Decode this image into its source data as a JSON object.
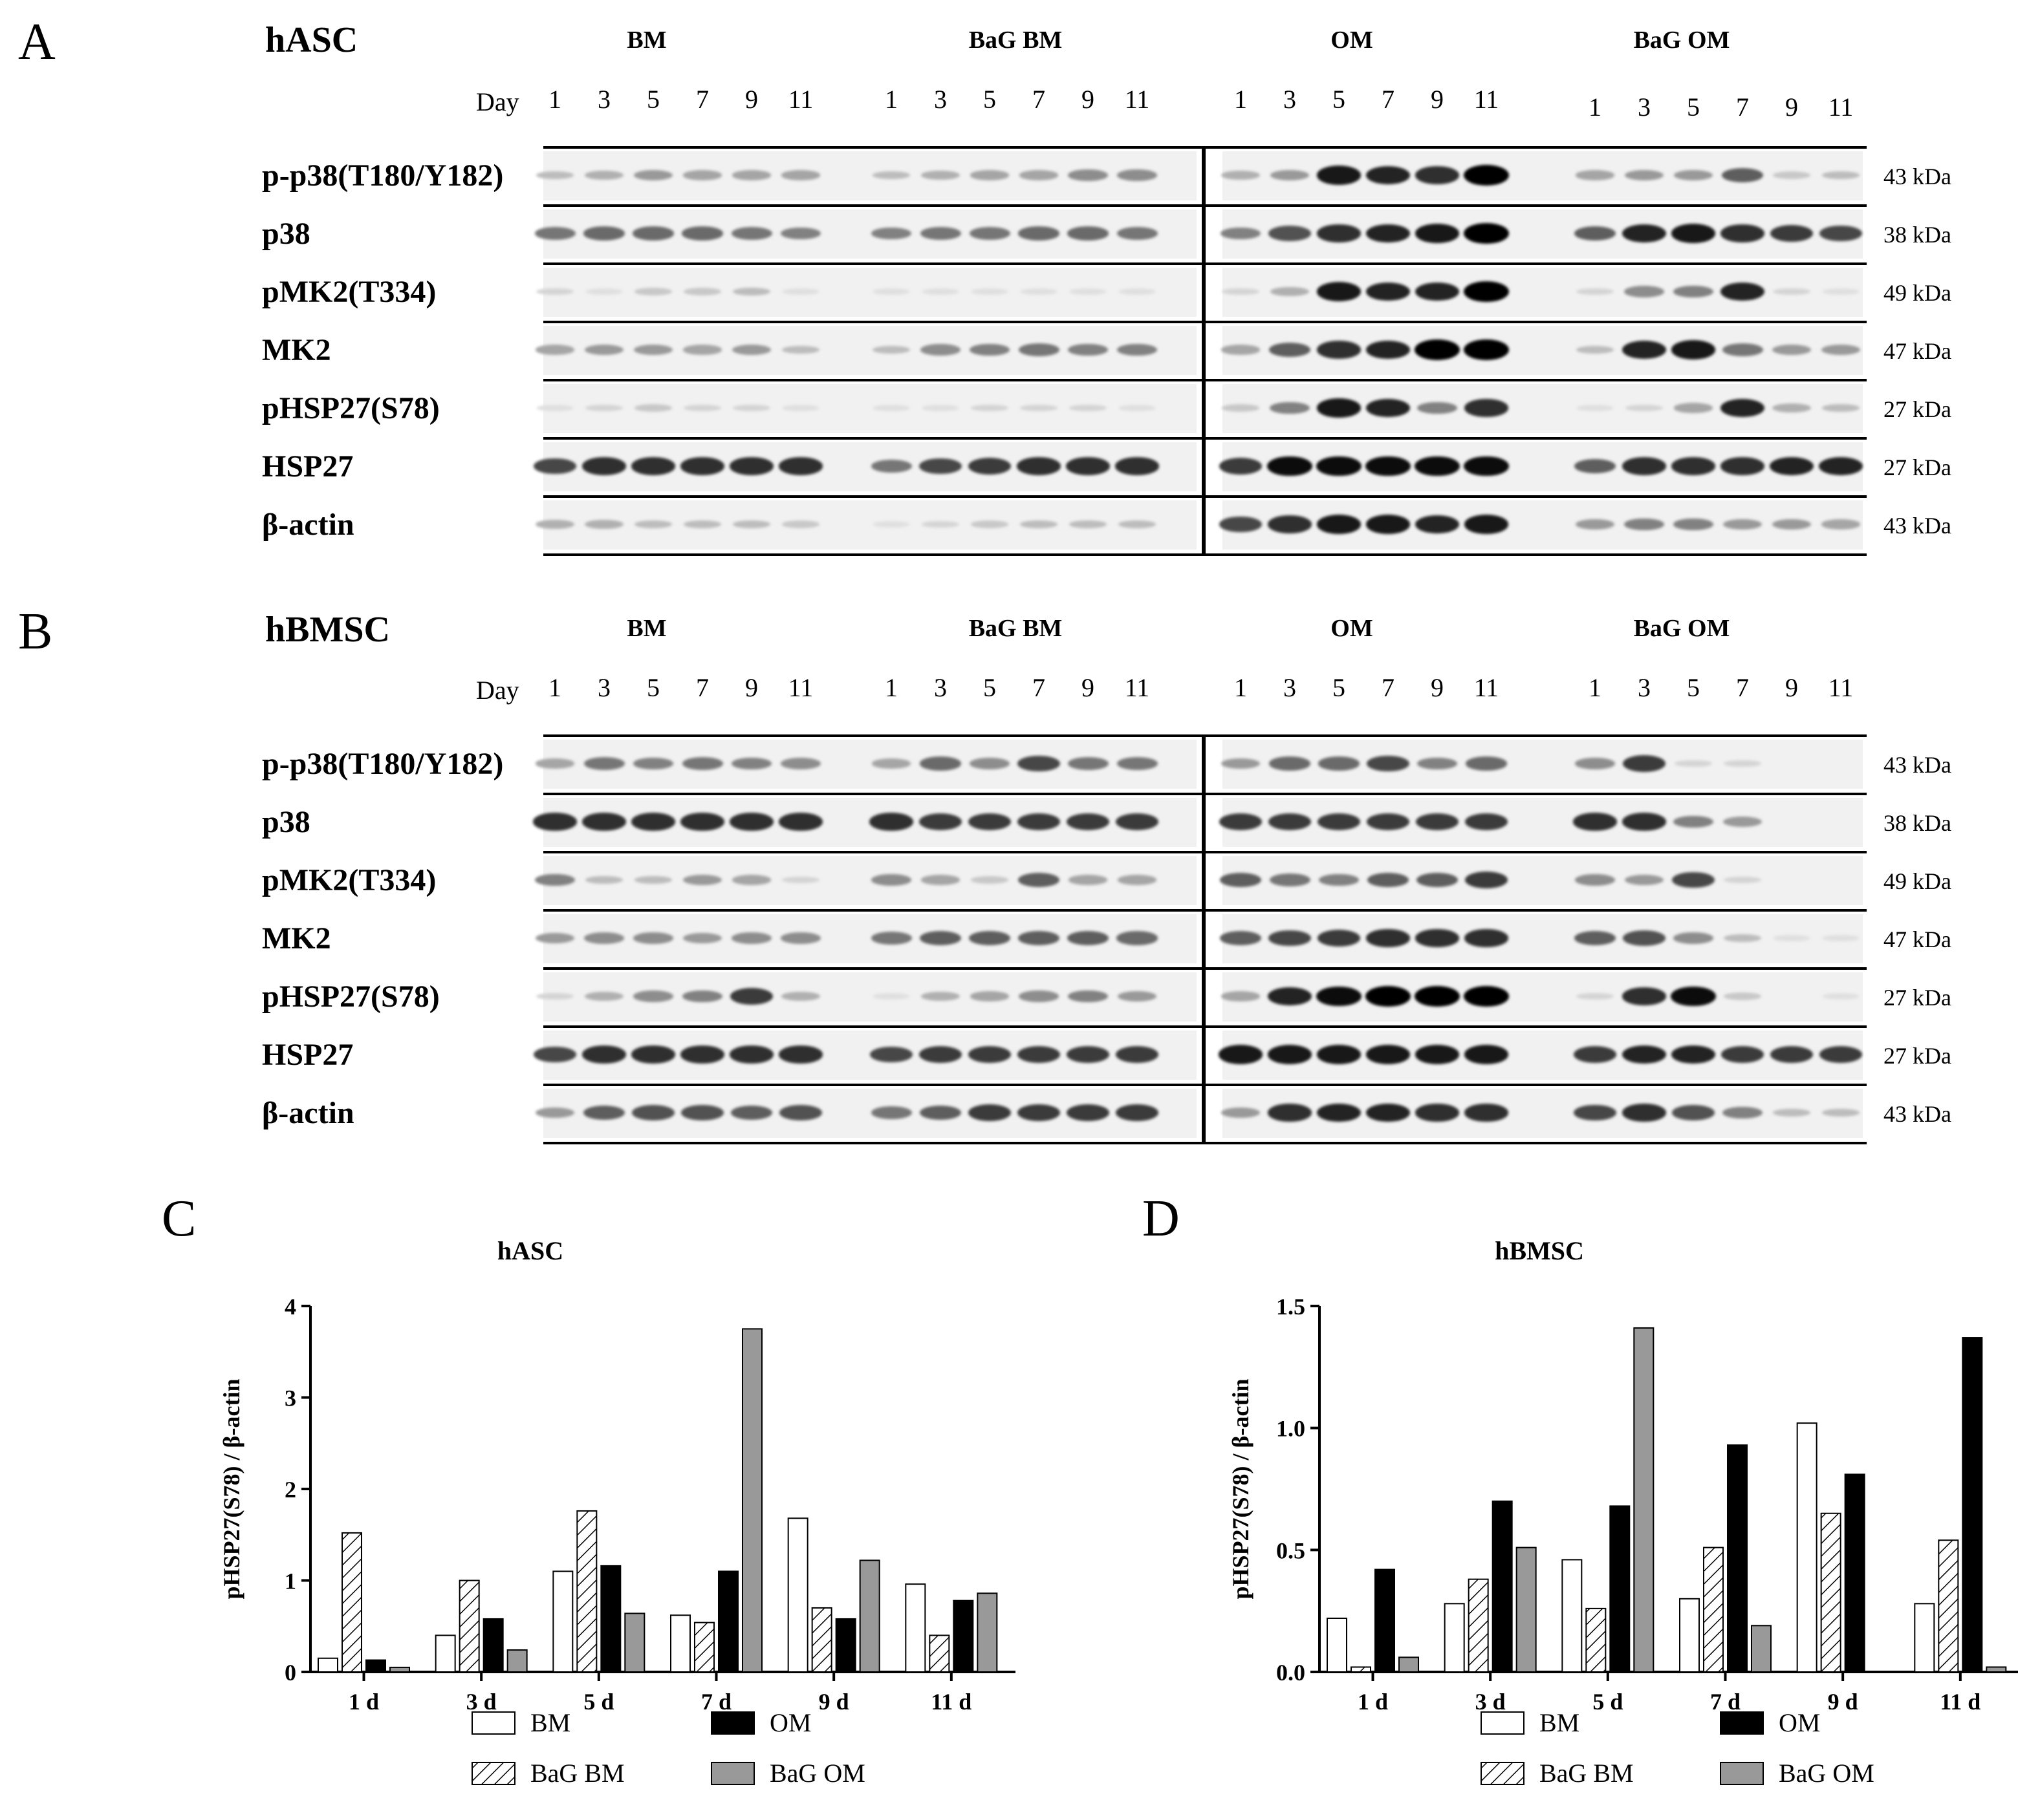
{
  "panels": {
    "A": {
      "letter": "A",
      "cell": "hASC"
    },
    "B": {
      "letter": "B",
      "cell": "hBMSC"
    },
    "C": {
      "letter": "C"
    },
    "D": {
      "letter": "D"
    }
  },
  "blot": {
    "groups": [
      "BM",
      "BaG BM",
      "OM",
      "BaG OM"
    ],
    "day_label": "Day",
    "days": [
      "1",
      "3",
      "5",
      "7",
      "9",
      "11"
    ],
    "rows": [
      {
        "label": "p-p38(T180/Y182)",
        "kda": "43 kDa"
      },
      {
        "label": "p38",
        "kda": "38 kDa"
      },
      {
        "label": "pMK2(T334)",
        "kda": "49 kDa"
      },
      {
        "label": "MK2",
        "kda": "47 kDa"
      },
      {
        "label": "pHSP27(S78)",
        "kda": "27 kDa"
      },
      {
        "label": "HSP27",
        "kda": "27 kDa"
      },
      {
        "label": "β-actin",
        "kda": "43 kDa"
      }
    ],
    "intensity_A": [
      [
        [
          0.2,
          0.25,
          0.35,
          0.3,
          0.3,
          0.3
        ],
        [
          0.2,
          0.25,
          0.3,
          0.3,
          0.4,
          0.4
        ],
        [
          0.25,
          0.35,
          0.9,
          0.85,
          0.8,
          1.0
        ],
        [
          0.3,
          0.35,
          0.35,
          0.6,
          0.15,
          0.2
        ]
      ],
      [
        [
          0.5,
          0.55,
          0.55,
          0.55,
          0.5,
          0.45
        ],
        [
          0.45,
          0.5,
          0.5,
          0.55,
          0.55,
          0.5
        ],
        [
          0.45,
          0.65,
          0.8,
          0.85,
          0.9,
          1.0
        ],
        [
          0.6,
          0.85,
          0.9,
          0.8,
          0.75,
          0.7
        ]
      ],
      [
        [
          0.1,
          0.05,
          0.15,
          0.15,
          0.2,
          0.05
        ],
        [
          0.05,
          0.05,
          0.05,
          0.05,
          0.05,
          0.05
        ],
        [
          0.1,
          0.25,
          0.9,
          0.85,
          0.85,
          1.0
        ],
        [
          0.1,
          0.4,
          0.45,
          0.85,
          0.1,
          0.05
        ]
      ],
      [
        [
          0.3,
          0.35,
          0.35,
          0.3,
          0.35,
          0.2
        ],
        [
          0.2,
          0.4,
          0.45,
          0.5,
          0.45,
          0.45
        ],
        [
          0.3,
          0.6,
          0.8,
          0.85,
          1.0,
          1.0
        ],
        [
          0.2,
          0.85,
          0.9,
          0.5,
          0.35,
          0.35
        ]
      ],
      [
        [
          0.05,
          0.1,
          0.15,
          0.1,
          0.1,
          0.05
        ],
        [
          0.05,
          0.05,
          0.1,
          0.1,
          0.1,
          0.05
        ],
        [
          0.15,
          0.45,
          0.9,
          0.85,
          0.45,
          0.8
        ],
        [
          0.05,
          0.1,
          0.3,
          0.85,
          0.25,
          0.2
        ]
      ],
      [
        [
          0.7,
          0.8,
          0.8,
          0.8,
          0.8,
          0.8
        ],
        [
          0.5,
          0.7,
          0.75,
          0.8,
          0.8,
          0.8
        ],
        [
          0.75,
          0.95,
          0.95,
          0.95,
          0.95,
          0.95
        ],
        [
          0.6,
          0.8,
          0.8,
          0.8,
          0.85,
          0.85
        ]
      ],
      [
        [
          0.25,
          0.25,
          0.2,
          0.2,
          0.2,
          0.15
        ],
        [
          0.05,
          0.1,
          0.15,
          0.2,
          0.2,
          0.2
        ],
        [
          0.7,
          0.8,
          0.9,
          0.9,
          0.85,
          0.9
        ],
        [
          0.35,
          0.45,
          0.45,
          0.35,
          0.35,
          0.3
        ]
      ]
    ],
    "intensity_B": [
      [
        [
          0.3,
          0.5,
          0.45,
          0.5,
          0.45,
          0.4
        ],
        [
          0.3,
          0.55,
          0.4,
          0.7,
          0.5,
          0.5
        ],
        [
          0.35,
          0.55,
          0.55,
          0.7,
          0.45,
          0.55
        ],
        [
          0.4,
          0.75,
          0.1,
          0.1,
          0.0,
          0.0
        ]
      ],
      [
        [
          0.8,
          0.8,
          0.8,
          0.8,
          0.8,
          0.8
        ],
        [
          0.8,
          0.75,
          0.75,
          0.75,
          0.75,
          0.75
        ],
        [
          0.75,
          0.75,
          0.75,
          0.75,
          0.75,
          0.75
        ],
        [
          0.8,
          0.8,
          0.45,
          0.35,
          0.0,
          0.0
        ]
      ],
      [
        [
          0.45,
          0.2,
          0.2,
          0.35,
          0.3,
          0.1
        ],
        [
          0.4,
          0.3,
          0.15,
          0.6,
          0.3,
          0.3
        ],
        [
          0.6,
          0.5,
          0.45,
          0.6,
          0.6,
          0.75
        ],
        [
          0.4,
          0.35,
          0.7,
          0.1,
          0.0,
          0.0
        ]
      ],
      [
        [
          0.35,
          0.4,
          0.4,
          0.35,
          0.4,
          0.4
        ],
        [
          0.5,
          0.6,
          0.6,
          0.6,
          0.6,
          0.55
        ],
        [
          0.6,
          0.7,
          0.75,
          0.8,
          0.8,
          0.8
        ],
        [
          0.6,
          0.65,
          0.4,
          0.2,
          0.05,
          0.05
        ]
      ],
      [
        [
          0.1,
          0.25,
          0.4,
          0.45,
          0.75,
          0.25
        ],
        [
          0.05,
          0.25,
          0.3,
          0.4,
          0.45,
          0.35
        ],
        [
          0.3,
          0.85,
          0.95,
          1.0,
          1.0,
          1.0
        ],
        [
          0.1,
          0.8,
          0.95,
          0.15,
          0.0,
          0.05
        ]
      ],
      [
        [
          0.7,
          0.8,
          0.8,
          0.8,
          0.8,
          0.8
        ],
        [
          0.7,
          0.75,
          0.75,
          0.75,
          0.75,
          0.75
        ],
        [
          0.9,
          0.9,
          0.9,
          0.9,
          0.9,
          0.9
        ],
        [
          0.75,
          0.85,
          0.85,
          0.75,
          0.75,
          0.75
        ]
      ],
      [
        [
          0.35,
          0.6,
          0.65,
          0.65,
          0.6,
          0.65
        ],
        [
          0.5,
          0.6,
          0.75,
          0.75,
          0.75,
          0.75
        ],
        [
          0.35,
          0.8,
          0.85,
          0.85,
          0.8,
          0.8
        ],
        [
          0.7,
          0.8,
          0.65,
          0.45,
          0.2,
          0.2
        ]
      ]
    ]
  },
  "chart_data": [
    {
      "type": "bar",
      "title": "hASC",
      "ylabel": "pHSP27(S78) / β-actin",
      "categories": [
        "1 d",
        "3 d",
        "5 d",
        "7 d",
        "9 d",
        "11 d"
      ],
      "ylim": [
        0,
        4
      ],
      "yticks": [
        "0",
        "1",
        "2",
        "3",
        "4"
      ],
      "series": [
        {
          "name": "BM",
          "values": [
            0.15,
            0.4,
            1.1,
            0.62,
            1.68,
            0.96
          ]
        },
        {
          "name": "BaG BM",
          "values": [
            1.52,
            1.0,
            1.76,
            0.54,
            0.7,
            0.4
          ]
        },
        {
          "name": "OM",
          "values": [
            0.13,
            0.58,
            1.16,
            1.1,
            0.58,
            0.78
          ]
        },
        {
          "name": "BaG OM",
          "values": [
            0.05,
            0.24,
            0.64,
            3.75,
            1.22,
            0.86
          ]
        }
      ],
      "legend": "bottom"
    },
    {
      "type": "bar",
      "title": "hBMSC",
      "ylabel": "pHSP27(S78) / β-actin",
      "categories": [
        "1 d",
        "3 d",
        "5 d",
        "7 d",
        "9 d",
        "11 d"
      ],
      "ylim": [
        0,
        1.5
      ],
      "yticks": [
        "0.0",
        "0.5",
        "1.0",
        "1.5"
      ],
      "series": [
        {
          "name": "BM",
          "values": [
            0.22,
            0.28,
            0.46,
            0.3,
            1.02,
            0.28
          ]
        },
        {
          "name": "BaG BM",
          "values": [
            0.02,
            0.38,
            0.26,
            0.51,
            0.65,
            0.54
          ]
        },
        {
          "name": "OM",
          "values": [
            0.42,
            0.7,
            0.68,
            0.93,
            0.81,
            1.37
          ]
        },
        {
          "name": "BaG OM",
          "values": [
            0.06,
            0.51,
            1.41,
            0.19,
            0.0,
            0.02
          ]
        }
      ],
      "legend": "bottom"
    }
  ]
}
